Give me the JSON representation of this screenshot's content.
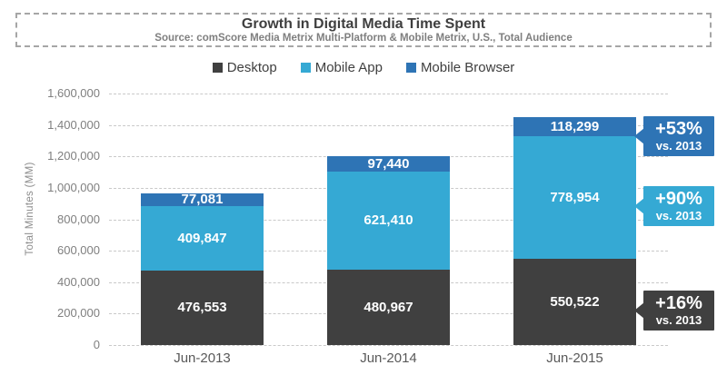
{
  "header": {
    "title": "Growth in Digital Media Time Spent",
    "subtitle": "Source: comScore Media Metrix Multi-Platform & Mobile Metrix, U.S., Total Audience"
  },
  "chart_data": {
    "type": "bar",
    "stacked": true,
    "title": "Growth in Digital Media Time Spent",
    "categories": [
      "Jun-2013",
      "Jun-2014",
      "Jun-2015"
    ],
    "series": [
      {
        "name": "Desktop",
        "color": "#404040",
        "values": [
          476553,
          480967,
          550522
        ]
      },
      {
        "name": "Mobile App",
        "color": "#35a9d4",
        "values": [
          409847,
          621410,
          778954
        ]
      },
      {
        "name": "Mobile Browser",
        "color": "#2e74b5",
        "values": [
          77081,
          97440,
          118299
        ]
      }
    ],
    "data_labels": [
      [
        "476,553",
        "480,967",
        "550,522"
      ],
      [
        "409,847",
        "621,410",
        "778,954"
      ],
      [
        "77,081",
        "97,440",
        "118,299"
      ]
    ],
    "ylabel": "Total Minutes (MM)",
    "xlabel": "",
    "ylim": [
      0,
      1600000
    ],
    "ytick_step": 200000,
    "ytick_labels": [
      "0",
      "200,000",
      "400,000",
      "600,000",
      "800,000",
      "1,000,000",
      "1,200,000",
      "1,400,000",
      "1,600,000"
    ],
    "grid": "horizontal-dashed",
    "legend_position": "top-center",
    "annotations": [
      {
        "label": "+53%",
        "sublabel": "vs. 2013",
        "target_series": "Mobile Browser",
        "target_category": "Jun-2015",
        "color": "#2e74b5"
      },
      {
        "label": "+90%",
        "sublabel": "vs. 2013",
        "target_series": "Mobile App",
        "target_category": "Jun-2015",
        "color": "#35a9d4"
      },
      {
        "label": "+16%",
        "sublabel": "vs. 2013",
        "target_series": "Desktop",
        "target_category": "Jun-2015",
        "color": "#404040"
      }
    ]
  },
  "colors": {
    "grid": "#c9c9c9",
    "axis_text": "#7f7f7f",
    "title_text": "#3f3f3f",
    "subtitle_text": "#7f7f7f",
    "category_text": "#595959",
    "dashed_border": "#a6a6a6",
    "value_label_text": "#ffffff"
  }
}
